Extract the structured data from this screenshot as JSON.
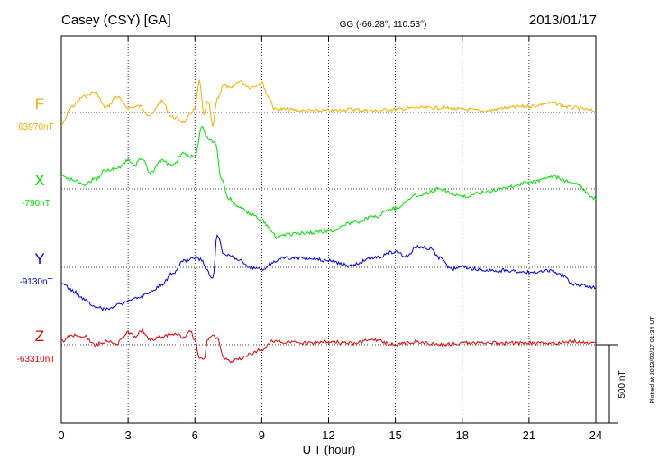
{
  "chart_data": {
    "type": "line",
    "title": "Casey (CSY)  [GA]",
    "coords": "GG (-66.28°, 110.53°)",
    "date": "2013/01/17",
    "xlabel": "U T (hour)",
    "xlim": [
      0,
      24
    ],
    "xticks": [
      0,
      3,
      6,
      9,
      12,
      15,
      18,
      21,
      24
    ],
    "scale_label": "500 nT",
    "scale_nT": 500,
    "footnote": "Plotted at 2013/02/17 01:34 UT",
    "grid": true,
    "series": [
      {
        "name": "F",
        "baseline_label": "63970nT",
        "baseline_nT": 63970,
        "color": "#f0b000",
        "x": [
          0,
          0.5,
          1.0,
          1.5,
          2.0,
          2.5,
          3.0,
          3.5,
          4.0,
          4.5,
          5.0,
          5.5,
          6.0,
          6.2,
          6.4,
          6.6,
          6.8,
          7.0,
          7.3,
          7.6,
          8.0,
          8.5,
          9.0,
          9.3,
          9.6,
          10.0,
          11.0,
          12.0,
          13.0,
          14.0,
          15.0,
          16.0,
          17.0,
          18.0,
          19.0,
          20.0,
          21.0,
          22.0,
          23.0,
          24.0
        ],
        "offset_nT": [
          -80,
          40,
          100,
          130,
          30,
          100,
          30,
          40,
          -20,
          70,
          -30,
          -60,
          20,
          200,
          -10,
          70,
          -90,
          90,
          180,
          150,
          200,
          160,
          190,
          100,
          20,
          20,
          10,
          10,
          20,
          10,
          20,
          30,
          30,
          20,
          10,
          30,
          40,
          60,
          30,
          10
        ]
      },
      {
        "name": "X",
        "baseline_label": "-790nT",
        "baseline_nT": -790,
        "color": "#00e000",
        "x": [
          0,
          0.5,
          1.0,
          1.5,
          2.0,
          2.5,
          3.0,
          3.3,
          3.6,
          4.0,
          4.5,
          5.0,
          5.5,
          6.0,
          6.3,
          6.6,
          6.9,
          7.2,
          7.5,
          8.0,
          8.5,
          9.0,
          9.4,
          9.7,
          10.0,
          11.0,
          12.0,
          13.0,
          14.0,
          15.0,
          16.0,
          17.0,
          18.0,
          19.0,
          20.0,
          21.0,
          22.0,
          23.0,
          24.0
        ],
        "offset_nT": [
          80,
          60,
          30,
          60,
          120,
          130,
          180,
          150,
          200,
          100,
          180,
          150,
          230,
          200,
          400,
          320,
          300,
          60,
          -60,
          -120,
          -160,
          -200,
          -260,
          -310,
          -290,
          -280,
          -270,
          -220,
          -180,
          -120,
          -40,
          0,
          -50,
          -20,
          10,
          40,
          80,
          40,
          -60
        ]
      },
      {
        "name": "Y",
        "baseline_label": "-9130nT",
        "baseline_nT": -9130,
        "color": "#0000e0",
        "x": [
          0,
          0.5,
          1.0,
          1.5,
          2.0,
          2.5,
          3.0,
          3.5,
          4.0,
          4.5,
          5.0,
          5.5,
          6.0,
          6.3,
          6.5,
          6.8,
          7.0,
          7.3,
          7.6,
          8.0,
          8.5,
          9.0,
          9.5,
          10.0,
          11.0,
          12.0,
          13.0,
          14.0,
          15.0,
          15.5,
          16.0,
          16.5,
          17.0,
          17.5,
          18.0,
          19.0,
          20.0,
          21.0,
          22.0,
          22.5,
          23.0,
          24.0
        ],
        "offset_nT": [
          -100,
          -150,
          -200,
          -250,
          -270,
          -240,
          -220,
          -190,
          -160,
          -110,
          -40,
          40,
          60,
          50,
          -20,
          -70,
          200,
          90,
          80,
          40,
          0,
          -10,
          30,
          60,
          60,
          40,
          10,
          60,
          100,
          70,
          130,
          120,
          60,
          -10,
          0,
          -20,
          -20,
          -30,
          -20,
          -50,
          -110,
          -130
        ]
      },
      {
        "name": "Z",
        "baseline_label": "-63310nT",
        "baseline_nT": -63310,
        "color": "#e00000",
        "x": [
          0,
          0.5,
          1.0,
          1.5,
          2.0,
          2.5,
          3.0,
          3.3,
          3.6,
          4.0,
          4.5,
          5.0,
          5.5,
          5.8,
          6.0,
          6.2,
          6.4,
          6.6,
          6.8,
          7.0,
          7.3,
          7.6,
          8.0,
          8.5,
          9.0,
          9.5,
          10.0,
          11.0,
          12.0,
          13.0,
          14.0,
          15.0,
          16.0,
          17.0,
          18.0,
          19.0,
          20.0,
          21.0,
          22.0,
          23.0,
          24.0
        ],
        "offset_nT": [
          20,
          60,
          60,
          0,
          20,
          10,
          80,
          50,
          90,
          30,
          50,
          70,
          50,
          90,
          30,
          -80,
          -100,
          40,
          70,
          40,
          -80,
          -110,
          -90,
          -60,
          -30,
          20,
          20,
          10,
          20,
          10,
          30,
          0,
          20,
          0,
          10,
          10,
          10,
          10,
          10,
          20,
          10
        ]
      }
    ]
  }
}
